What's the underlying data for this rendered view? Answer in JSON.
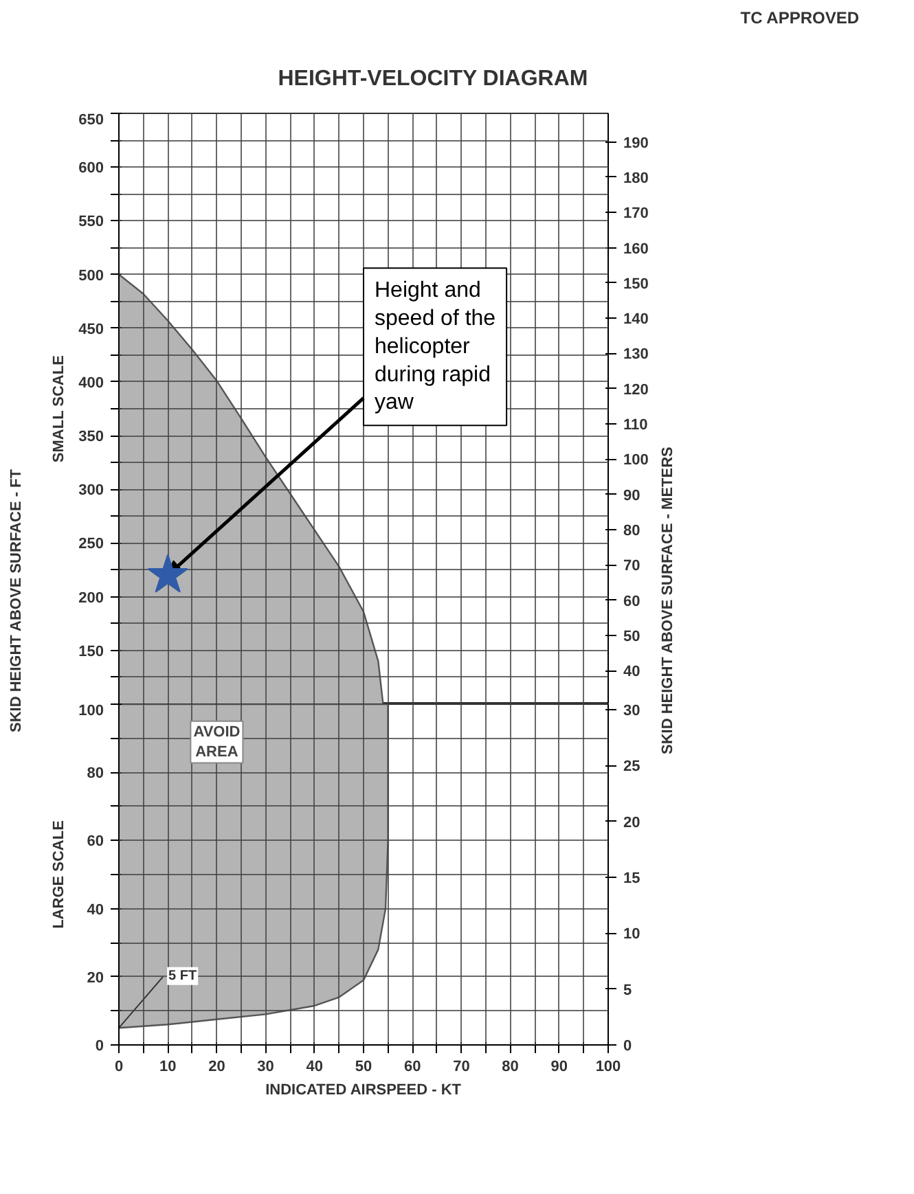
{
  "chart_data": [
    {
      "type": "area",
      "title": "HEIGHT-VELOCITY DIAGRAM",
      "ylabel": "SKID HEIGHT ABOVE SURFACE - FT",
      "y2label": "SKID HEIGHT ABOVE SURFACE - METERS",
      "annotations": [
        "TC APPROVED",
        "SMALL SCALE",
        {
          "text": "Height and speed of the helicopter during rapid yaw",
          "x": 10,
          "y": 220
        }
      ],
      "xlim": [
        0,
        100
      ],
      "xticks": [
        0,
        {
          "value": 5,
          "label": null
        },
        10,
        {
          "value": 15,
          "label": null
        },
        20,
        {
          "value": 25,
          "label": null
        },
        30,
        {
          "value": 35,
          "label": null
        },
        40,
        {
          "value": 45,
          "label": null
        },
        50,
        {
          "value": 55,
          "label": null
        },
        60,
        {
          "value": 65,
          "label": null
        },
        70,
        {
          "value": 75,
          "label": null
        },
        80,
        {
          "value": 85,
          "label": null
        },
        90,
        {
          "value": 95,
          "label": null
        },
        100
      ],
      "ylim": [
        100,
        650
      ],
      "yticks": [
        {
          "value": 125,
          "label": null
        },
        150,
        {
          "value": 175,
          "label": null
        },
        200,
        {
          "value": 225,
          "label": null
        },
        250,
        {
          "value": 275,
          "label": null
        },
        300,
        {
          "value": 325,
          "label": null
        },
        350,
        {
          "value": 375,
          "label": null
        },
        400,
        {
          "value": 425,
          "label": null
        },
        450,
        {
          "value": 475,
          "label": null
        },
        500,
        {
          "value": 525,
          "label": null
        },
        550,
        {
          "value": 575,
          "label": null
        },
        600,
        {
          "value": 625,
          "label": null
        },
        650
      ],
      "y2lim": [
        30.48,
        198.12
      ],
      "y2ticks": [
        40,
        50,
        60,
        70,
        80,
        90,
        100,
        110,
        120,
        130,
        140,
        150,
        160,
        170,
        180,
        190
      ],
      "tick_labels": "y",
      "grid": true,
      "series": [
        {
          "color": "#b4b4b4",
          "x": [
            0,
            5,
            10,
            15,
            20,
            25,
            30,
            35,
            40,
            45,
            50,
            53,
            54
          ],
          "values": [
            500,
            482,
            457,
            430,
            401,
            366,
            330,
            296,
            262,
            228,
            186,
            140,
            100
          ]
        },
        {
          "type": "scatter",
          "marker": "star",
          "color": "#2f5ba8",
          "x": [
            10
          ],
          "values": [
            220
          ]
        }
      ]
    },
    {
      "type": "area",
      "xlabel": "INDICATED AIRSPEED - KT",
      "annotations": [
        "AVOID AREA",
        {
          "text": "5 FT",
          "x": 0,
          "y": 5
        },
        "LARGE SCALE"
      ],
      "xlim": [
        0,
        100
      ],
      "xticks": [
        0,
        {
          "value": 5,
          "label": null
        },
        10,
        {
          "value": 15,
          "label": null
        },
        20,
        {
          "value": 25,
          "label": null
        },
        30,
        {
          "value": 35,
          "label": null
        },
        40,
        {
          "value": 45,
          "label": null
        },
        50,
        {
          "value": 55,
          "label": null
        },
        60,
        {
          "value": 65,
          "label": null
        },
        70,
        {
          "value": 75,
          "label": null
        },
        80,
        {
          "value": 85,
          "label": null
        },
        90,
        {
          "value": 95,
          "label": null
        },
        100
      ],
      "ylim": [
        0,
        100
      ],
      "yticks": [
        0,
        {
          "value": 10,
          "label": null
        },
        20,
        {
          "value": 30,
          "label": null
        },
        40,
        {
          "value": 50,
          "label": null
        },
        60,
        {
          "value": 70,
          "label": null
        },
        80,
        {
          "value": 90,
          "label": null
        },
        100
      ],
      "y2lim": [
        0,
        30.48
      ],
      "y2ticks": [
        0,
        5,
        10,
        15,
        20,
        25,
        30
      ],
      "grid": true,
      "series": [
        {
          "color": "#b4b4b4",
          "x": [
            0,
            55
          ],
          "values": [
            100,
            100
          ]
        },
        {
          "type": "line",
          "color": "#555555",
          "x": [
            0,
            10,
            20,
            30,
            40,
            45,
            50,
            53,
            54.5,
            55,
            55
          ],
          "values": [
            5,
            6,
            7.5,
            9,
            11.5,
            14,
            19,
            28,
            40,
            60,
            100
          ]
        }
      ]
    }
  ]
}
